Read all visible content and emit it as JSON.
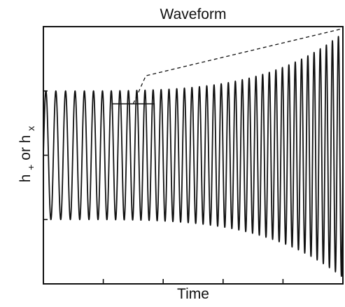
{
  "chart_data": {
    "type": "line",
    "title": "Waveform",
    "xlabel": "Time",
    "ylabel": {
      "base1": "h",
      "sub1": "+",
      "middle": " or ",
      "base2": "h",
      "sub2": "x"
    },
    "xlim": [
      0,
      1
    ],
    "ylim": [
      -1,
      1
    ],
    "grid": false,
    "legend": "none",
    "x_ticks_count": 4,
    "y_ticks_count": 3,
    "series": [
      {
        "style": "oscillating chirp",
        "cycles": 40,
        "start_amplitude": 0.5,
        "end_amplitude": 0.95,
        "frequency_growth": 0.7
      }
    ],
    "annotations": [
      {
        "type": "bracket",
        "x_start": 0.23,
        "x_end": 0.37,
        "y": 0.4,
        "leader_line": "dashed"
      }
    ],
    "colors": {
      "line": "#111111",
      "frame": "#111111",
      "annotation": "#111111",
      "background": "#ffffff"
    }
  }
}
